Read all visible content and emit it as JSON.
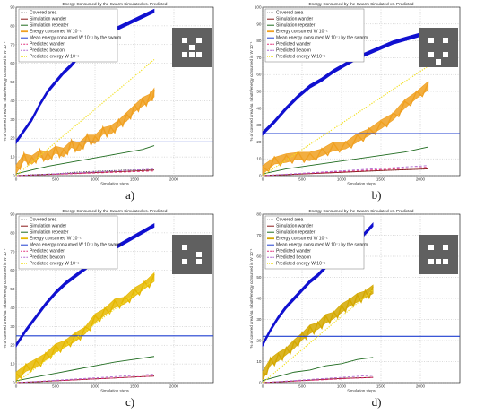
{
  "chart_data": [
    {
      "panel": "a)",
      "type": "line",
      "title": "Energy Consumed by the Swarm Simulated vs. Predicted",
      "xlabel": "Simulation steps",
      "ylabel": "% of covered area/No. robots/energy consumed in W 10^-1",
      "xlim": [
        0,
        2500
      ],
      "ylim": [
        0,
        90
      ],
      "xticks": [
        "0",
        "500",
        "1000",
        "1500",
        "2000"
      ],
      "yticks": [
        "0",
        "10",
        "20",
        "30",
        "40",
        "50",
        "60",
        "70",
        "80",
        "90"
      ],
      "grid": true,
      "legend_position": "top-left",
      "map_icon": [
        [
          1,
          1,
          1,
          1,
          1
        ],
        [
          1,
          0,
          1,
          0,
          1
        ],
        [
          1,
          1,
          0,
          1,
          1
        ],
        [
          1,
          0,
          0,
          0,
          1
        ],
        [
          1,
          1,
          1,
          1,
          1
        ]
      ],
      "series": [
        {
          "name": "Covered area",
          "style": "dotted",
          "color": "#444444",
          "x": [
            0,
            200,
            500,
            800,
            1100,
            1400,
            1750
          ],
          "y": [
            0,
            0.5,
            1,
            2,
            2.5,
            3,
            3
          ]
        },
        {
          "name": "Simulation wander",
          "style": "solid",
          "color": "#8b1a1a",
          "x": [
            0,
            300,
            600,
            900,
            1200,
            1500,
            1750
          ],
          "y": [
            0,
            0.5,
            1,
            1.5,
            2,
            2.5,
            3
          ]
        },
        {
          "name": "Simulation repeater",
          "style": "solid",
          "color": "#1f6b1f",
          "x": [
            0,
            200,
            400,
            600,
            800,
            1000,
            1200,
            1400,
            1600,
            1750
          ],
          "y": [
            1,
            3,
            5,
            6.5,
            8,
            9.5,
            11,
            12.5,
            14,
            16
          ]
        },
        {
          "name": "Energy consumed W 10^-1",
          "style": "band",
          "color": "#f0a020",
          "x": [
            0,
            100,
            200,
            300,
            400,
            500,
            600,
            700,
            800,
            900,
            1000,
            1100,
            1200,
            1300,
            1400,
            1500,
            1600,
            1700,
            1750
          ],
          "y": [
            3,
            10,
            8,
            12,
            10,
            14,
            12,
            17,
            15,
            20,
            19,
            24,
            24,
            28,
            31,
            36,
            39,
            42,
            44
          ]
        },
        {
          "name": "Mean energy consumed W 10^-1 by the swarm",
          "style": "solid",
          "color": "#1f3fd0",
          "x": [
            0,
            1750
          ],
          "y": [
            18,
            18
          ]
        },
        {
          "name": "Predicted wander",
          "style": "dashed",
          "color": "#e0307a",
          "x": [
            0,
            1750
          ],
          "y": [
            0,
            2.5
          ]
        },
        {
          "name": "Predicted beacon",
          "style": "dashed",
          "color": "#b068d0",
          "x": [
            0,
            1750
          ],
          "y": [
            0,
            3.5
          ]
        },
        {
          "name": "Predicted energy W 10^-1",
          "style": "dotted",
          "color": "#f2e020",
          "x": [
            0,
            1750
          ],
          "y": [
            0,
            62
          ]
        },
        {
          "name": "",
          "style": "band",
          "color": "#1010d0",
          "x": [
            0,
            100,
            200,
            300,
            400,
            500,
            600,
            700,
            800,
            900,
            1000,
            1100,
            1200,
            1300,
            1400,
            1500,
            1600,
            1700,
            1750
          ],
          "y": [
            18,
            24,
            30,
            38,
            45,
            50,
            55,
            59,
            64,
            67,
            71,
            74,
            77,
            79,
            81,
            83,
            85,
            87,
            88
          ]
        }
      ]
    },
    {
      "panel": "b)",
      "type": "line",
      "title": "Energy Consumed by the Swarm Simulated vs. Predicted",
      "xlabel": "Simulation steps",
      "ylabel": "% of covered area/No. robots/energy consumed in W 10^-1",
      "xlim": [
        0,
        2500
      ],
      "ylim": [
        0,
        100
      ],
      "xticks": [
        "0",
        "500",
        "1000",
        "1500",
        "2000"
      ],
      "yticks": [
        "0",
        "10",
        "20",
        "30",
        "40",
        "50",
        "60",
        "70",
        "80",
        "90",
        "100"
      ],
      "grid": true,
      "legend_position": "top-left",
      "map_icon": [
        [
          1,
          1,
          1,
          1,
          1
        ],
        [
          1,
          0,
          1,
          0,
          1
        ],
        [
          1,
          1,
          1,
          1,
          1
        ],
        [
          1,
          0,
          1,
          0,
          1
        ],
        [
          1,
          1,
          0,
          1,
          1
        ]
      ],
      "series": [
        {
          "name": "Covered area",
          "style": "dotted",
          "color": "#444444",
          "x": [
            0,
            500,
            1000,
            1500,
            2100
          ],
          "y": [
            0,
            1,
            2,
            3,
            4
          ]
        },
        {
          "name": "Simulation wander",
          "style": "solid",
          "color": "#8b1a1a",
          "x": [
            0,
            500,
            1000,
            1500,
            2100
          ],
          "y": [
            0,
            1,
            2,
            3,
            4
          ]
        },
        {
          "name": "Simulation repeater",
          "style": "solid",
          "color": "#1f6b1f",
          "x": [
            0,
            300,
            600,
            900,
            1200,
            1500,
            1800,
            2100
          ],
          "y": [
            1,
            4,
            6,
            8,
            10,
            12,
            14,
            17
          ]
        },
        {
          "name": "Energy consumed W 10^-1",
          "style": "band",
          "color": "#f0a020",
          "x": [
            0,
            150,
            300,
            450,
            600,
            750,
            900,
            1050,
            1200,
            1350,
            1500,
            1650,
            1800,
            1950,
            2100
          ],
          "y": [
            3,
            9,
            10,
            12,
            11,
            14,
            17,
            18,
            22,
            26,
            30,
            35,
            42,
            48,
            53
          ]
        },
        {
          "name": "Mean energy consumed W 10^-1 by the swarm",
          "style": "solid",
          "color": "#1f3fd0",
          "x": [
            0,
            2100
          ],
          "y": [
            25,
            25
          ]
        },
        {
          "name": "Predicted wander",
          "style": "dashed",
          "color": "#e0307a",
          "x": [
            0,
            2100
          ],
          "y": [
            0,
            5
          ]
        },
        {
          "name": "Predicted beacon",
          "style": "dashed",
          "color": "#b068d0",
          "x": [
            0,
            2100
          ],
          "y": [
            0,
            6
          ]
        },
        {
          "name": "Predicted energy W 10^-1",
          "style": "dotted",
          "color": "#f2e020",
          "x": [
            0,
            2100
          ],
          "y": [
            0,
            65
          ]
        },
        {
          "name": "",
          "style": "band",
          "color": "#1010d0",
          "x": [
            0,
            150,
            300,
            450,
            600,
            750,
            900,
            1050,
            1200,
            1350,
            1500,
            1650,
            1800,
            1950,
            2100
          ],
          "y": [
            25,
            32,
            40,
            47,
            53,
            57,
            62,
            66,
            70,
            73,
            76,
            79,
            81,
            83,
            85
          ]
        }
      ]
    },
    {
      "panel": "c)",
      "type": "line",
      "title": "Energy Consumed by the Swarm Simulated vs. Predicted",
      "xlabel": "Simulation steps",
      "ylabel": "% of covered area/No. robots/energy consumed in W 10^-1",
      "xlim": [
        0,
        2500
      ],
      "ylim": [
        0,
        90
      ],
      "xticks": [
        "0",
        "500",
        "1000",
        "1500",
        "2000"
      ],
      "yticks": [
        "0",
        "10",
        "20",
        "30",
        "40",
        "50",
        "60",
        "70",
        "80",
        "90"
      ],
      "grid": true,
      "legend_position": "top-left",
      "map_icon": [
        [
          1,
          1,
          1,
          1,
          1
        ],
        [
          1,
          0,
          1,
          1,
          1
        ],
        [
          1,
          1,
          1,
          0,
          1
        ],
        [
          1,
          0,
          1,
          0,
          1
        ],
        [
          1,
          1,
          1,
          1,
          1
        ]
      ],
      "series": [
        {
          "name": "Covered area",
          "style": "dotted",
          "color": "#444444",
          "x": [
            0,
            500,
            1000,
            1500,
            1750
          ],
          "y": [
            0,
            1,
            2,
            3,
            3.5
          ]
        },
        {
          "name": "Simulation wander",
          "style": "solid",
          "color": "#8b1a1a",
          "x": [
            0,
            500,
            1000,
            1500,
            1750
          ],
          "y": [
            0,
            1,
            2,
            3,
            3.5
          ]
        },
        {
          "name": "Simulation repeater",
          "style": "solid",
          "color": "#1f6b1f",
          "x": [
            0,
            250,
            500,
            750,
            1000,
            1250,
            1500,
            1750
          ],
          "y": [
            1,
            3,
            5,
            7,
            9,
            11,
            12.5,
            14
          ]
        },
        {
          "name": "Energy consumed W 10^-1",
          "style": "band",
          "color": "#e6b800",
          "x": [
            0,
            125,
            250,
            375,
            500,
            625,
            750,
            875,
            1000,
            1125,
            1250,
            1375,
            1500,
            1625,
            1750
          ],
          "y": [
            3,
            8,
            10,
            14,
            18,
            21,
            24,
            28,
            34,
            38,
            42,
            44,
            48,
            52,
            56
          ]
        },
        {
          "name": "Mean energy consumed W 10^-1 by the swarm",
          "style": "solid",
          "color": "#1f3fd0",
          "x": [
            0,
            1750
          ],
          "y": [
            25,
            25
          ]
        },
        {
          "name": "Predicted wander",
          "style": "dashed",
          "color": "#e0307a",
          "x": [
            0,
            1750
          ],
          "y": [
            0,
            3.5
          ]
        },
        {
          "name": "Predicted beacon",
          "style": "dashed",
          "color": "#b068d0",
          "x": [
            0,
            1750
          ],
          "y": [
            0,
            4.5
          ]
        },
        {
          "name": "Predicted energy W 10^-1",
          "style": "dotted",
          "color": "#f2e020",
          "x": [
            0,
            1750
          ],
          "y": [
            0,
            55
          ]
        },
        {
          "name": "",
          "style": "band",
          "color": "#1010d0",
          "x": [
            0,
            125,
            250,
            375,
            500,
            625,
            750,
            875,
            1000,
            1125,
            1250,
            1375,
            1500,
            1625,
            1750
          ],
          "y": [
            20,
            28,
            35,
            42,
            48,
            53,
            57,
            61,
            65,
            68,
            72,
            75,
            78,
            81,
            84
          ]
        }
      ]
    },
    {
      "panel": "d)",
      "type": "line",
      "title": "Energy Consumed by the Swarm Simulated vs. Predicted",
      "xlabel": "Simulation steps",
      "ylabel": "% of covered area/No. robots/energy consumed in W 10^-1",
      "xlim": [
        0,
        2500
      ],
      "ylim": [
        0,
        80
      ],
      "xticks": [
        "0",
        "500",
        "1000",
        "1500",
        "2000"
      ],
      "yticks": [
        "0",
        "10",
        "20",
        "30",
        "40",
        "50",
        "60",
        "70",
        "80"
      ],
      "grid": true,
      "legend_position": "top-left",
      "map_icon": [
        [
          1,
          1,
          1,
          1,
          1
        ],
        [
          1,
          0,
          1,
          0,
          1
        ],
        [
          1,
          1,
          1,
          1,
          1
        ],
        [
          1,
          0,
          0,
          0,
          1
        ],
        [
          1,
          1,
          1,
          1,
          1
        ]
      ],
      "series": [
        {
          "name": "Covered area",
          "style": "dotted",
          "color": "#444444",
          "x": [
            0,
            500,
            1000,
            1400
          ],
          "y": [
            0,
            1,
            2,
            2.5
          ]
        },
        {
          "name": "Simulation wander",
          "style": "solid",
          "color": "#8b1a1a",
          "x": [
            0,
            500,
            1000,
            1400
          ],
          "y": [
            0,
            1,
            2,
            2.5
          ]
        },
        {
          "name": "Simulation repeater",
          "style": "solid",
          "color": "#1f6b1f",
          "x": [
            0,
            200,
            400,
            600,
            800,
            1000,
            1200,
            1400
          ],
          "y": [
            1,
            3,
            5,
            6,
            8,
            9,
            11,
            12
          ]
        },
        {
          "name": "Energy consumed W 10^-1",
          "style": "band",
          "color": "#d4a800",
          "x": [
            0,
            100,
            200,
            300,
            400,
            500,
            600,
            700,
            800,
            900,
            1000,
            1100,
            1200,
            1300,
            1400
          ],
          "y": [
            3,
            10,
            12,
            15,
            18,
            22,
            25,
            27,
            30,
            32,
            35,
            38,
            40,
            42,
            44
          ]
        },
        {
          "name": "Mean energy consumed W 10^-1 by the swarm",
          "style": "solid",
          "color": "#1f3fd0",
          "x": [
            0,
            1400
          ],
          "y": [
            22,
            22
          ]
        },
        {
          "name": "Predicted wander",
          "style": "dashed",
          "color": "#e0307a",
          "x": [
            0,
            1400
          ],
          "y": [
            0,
            2.5
          ]
        },
        {
          "name": "Predicted beacon",
          "style": "dashed",
          "color": "#b068d0",
          "x": [
            0,
            1400
          ],
          "y": [
            0,
            3.5
          ]
        },
        {
          "name": "Predicted energy W 10^-1",
          "style": "dotted",
          "color": "#f2e020",
          "x": [
            0,
            1400
          ],
          "y": [
            0,
            44
          ]
        },
        {
          "name": "",
          "style": "band",
          "color": "#1010d0",
          "x": [
            0,
            100,
            200,
            300,
            400,
            500,
            600,
            700,
            800,
            900,
            1000,
            1100,
            1200,
            1300,
            1400
          ],
          "y": [
            18,
            25,
            31,
            36,
            40,
            44,
            48,
            51,
            55,
            58,
            61,
            64,
            67,
            71,
            75
          ]
        }
      ]
    }
  ]
}
